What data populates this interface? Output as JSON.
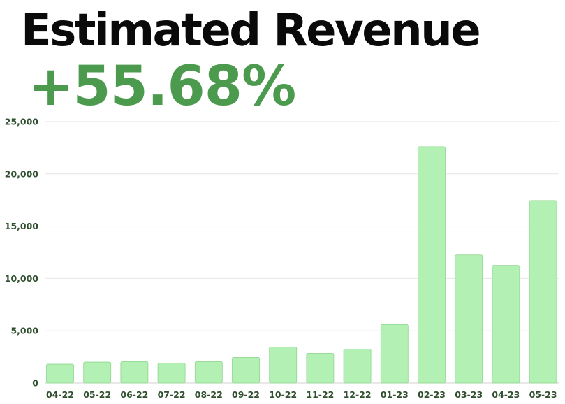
{
  "header": {
    "title": "Estimated Revenue",
    "change": "+55.68%"
  },
  "colors": {
    "bar_fill": "#b3f0b3",
    "bar_stroke": "#8fd68f",
    "grid": "#e6e6e6",
    "change": "#4b9a4d"
  },
  "chart_data": {
    "type": "bar",
    "title": "Estimated Revenue",
    "xlabel": "",
    "ylabel": "",
    "ylim": [
      0,
      25000
    ],
    "yticks": [
      0,
      5000,
      10000,
      15000,
      20000,
      25000
    ],
    "ytick_labels": [
      "0",
      "5,000",
      "10,000",
      "15,000",
      "20,000",
      "25,000"
    ],
    "grid": true,
    "categories": [
      "04-22",
      "05-22",
      "06-22",
      "07-22",
      "08-22",
      "09-22",
      "10-22",
      "11-22",
      "12-22",
      "01-23",
      "02-23",
      "03-23",
      "04-23",
      "05-23"
    ],
    "values": [
      1800,
      2000,
      2050,
      1900,
      2050,
      2450,
      3450,
      2850,
      3250,
      5600,
      22600,
      12250,
      11250,
      17450
    ]
  }
}
